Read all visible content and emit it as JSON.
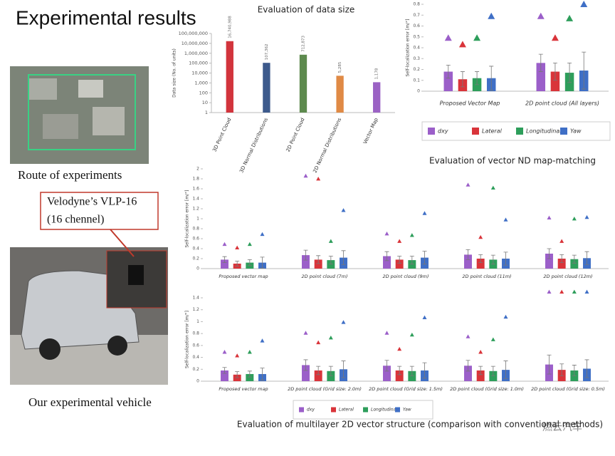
{
  "slide": {
    "title": "Experimental results",
    "route_caption": "Route of experiments",
    "sensor_callout": [
      "Velodyne’s VLP-16",
      "(16 chennel)"
    ],
    "vehicle_caption": "Our experimental vehicle",
    "watermark": "燃云汽车"
  },
  "chart_data": [
    {
      "type": "bar",
      "title": "Evaluation of data size",
      "y_label": "Data size (No. of units)",
      "log_scale": true,
      "categories": [
        "3D Point Cloud",
        "3D Normal Distributions",
        "2D Point Cloud",
        "2D Normal Distributions",
        "Vector Map"
      ],
      "values": [
        16740988,
        107362,
        712873,
        5285,
        1178
      ],
      "value_labels": [
        "16,740,988",
        "107,362",
        "712,873",
        "5,285",
        "1,178"
      ],
      "colors": [
        "#d2343c",
        "#3d5a8c",
        "#5d8a4e",
        "#e08a45",
        "#9b62c4"
      ],
      "ylim": [
        1,
        100000000
      ],
      "yticks": [
        1,
        10,
        100,
        {
          "value": 1000,
          "label": "1,000"
        },
        {
          "value": 10000,
          "label": "10,000"
        },
        {
          "value": 100000,
          "label": "100,000"
        },
        {
          "value": 1000000,
          "label": "1,000,000"
        },
        {
          "value": 10000000,
          "label": "10,000,000"
        },
        {
          "value": 100000000,
          "label": "100,000,000"
        }
      ]
    },
    {
      "type": "bar",
      "title": "Evaluation of vector ND map-matching",
      "title_position": "bottom",
      "y_label": "Self-localization error [m/°]",
      "legend": "bottom",
      "categories": [
        "Proposed Vector Map",
        "2D point cloud (All layers)"
      ],
      "ylim": [
        0,
        0.8
      ],
      "yticks": [
        0,
        0.1,
        0.2,
        0.3,
        0.4,
        0.5,
        0.6,
        0.7,
        0.8
      ],
      "series": [
        {
          "name": "dxy",
          "color": "#9b5fc9",
          "values": [
            0.18,
            0.26
          ],
          "errors": [
            0.06,
            0.08
          ],
          "max": [
            0.49,
            0.69
          ]
        },
        {
          "name": "Lateral",
          "color": "#d9343a",
          "values": [
            0.11,
            0.18
          ],
          "errors": [
            0.07,
            0.08
          ],
          "max": [
            0.43,
            0.49
          ]
        },
        {
          "name": "Longitudinal",
          "color": "#2e9e5b",
          "values": [
            0.12,
            0.17
          ],
          "errors": [
            0.06,
            0.09
          ],
          "max": [
            0.49,
            0.67
          ]
        },
        {
          "name": "Yaw",
          "color": "#3f6fc6",
          "values": [
            0.12,
            0.19
          ],
          "errors": [
            0.11,
            0.17
          ],
          "max": [
            0.69,
            0.8
          ]
        }
      ]
    },
    {
      "type": "bar",
      "y_label": "Self-localization error [m/°]",
      "categories": [
        "Proposed vector map",
        "2D point cloud (7m)",
        "2D point cloud (9m)",
        "2D point cloud (11m)",
        "2D point cloud (12m)"
      ],
      "ylim": [
        0,
        2
      ],
      "yticks": [
        0,
        0.2,
        0.4,
        0.6,
        0.8,
        1,
        1.2,
        1.4,
        1.6,
        1.8,
        2
      ],
      "series": [
        {
          "name": "dxy",
          "color": "#9b5fc9",
          "values": [
            0.18,
            0.27,
            0.25,
            0.28,
            0.3
          ],
          "errors": [
            0.06,
            0.1,
            0.09,
            0.1,
            0.1
          ],
          "max": [
            0.49,
            1.86,
            0.7,
            1.68,
            1.02
          ]
        },
        {
          "name": "Lateral",
          "color": "#d9343a",
          "values": [
            0.1,
            0.18,
            0.18,
            0.2,
            0.2
          ],
          "errors": [
            0.05,
            0.08,
            0.07,
            0.08,
            0.08
          ],
          "max": [
            0.42,
            1.8,
            0.55,
            0.63,
            0.55
          ]
        },
        {
          "name": "Longitudinal",
          "color": "#2e9e5b",
          "values": [
            0.12,
            0.17,
            0.17,
            0.18,
            0.19
          ],
          "errors": [
            0.06,
            0.08,
            0.08,
            0.09,
            0.08
          ],
          "max": [
            0.49,
            0.55,
            0.67,
            1.62,
            1.0
          ]
        },
        {
          "name": "Yaw",
          "color": "#3f6fc6",
          "values": [
            0.12,
            0.22,
            0.22,
            0.2,
            0.21
          ],
          "errors": [
            0.11,
            0.14,
            0.13,
            0.13,
            0.13
          ],
          "max": [
            0.69,
            1.17,
            1.11,
            0.98,
            1.03
          ]
        }
      ]
    },
    {
      "type": "bar",
      "title": "Evaluation of multilayer 2D vector structure (comparison with conventional methods)",
      "title_position": "bottom",
      "y_label": "Self-localization error [m/°]",
      "legend": "bottom",
      "categories": [
        "Proposed vector map",
        "2D point cloud (Grid size: 2.0m)",
        "2D point cloud (Grid size: 1.5m)",
        "2D point cloud (Grid size: 1.0m)",
        "2D point cloud (Grid size: 0.5m)"
      ],
      "ylim": [
        0,
        1.4
      ],
      "yticks": [
        0,
        0.2,
        0.4,
        0.6,
        0.8,
        1,
        1.2,
        1.4
      ],
      "series": [
        {
          "name": "dxy",
          "color": "#9b5fc9",
          "values": [
            0.18,
            0.27,
            0.26,
            0.26,
            0.28
          ],
          "errors": [
            0.05,
            0.09,
            0.09,
            0.09,
            0.16
          ],
          "max": [
            0.49,
            0.81,
            0.81,
            0.75,
            1.5
          ]
        },
        {
          "name": "Lateral",
          "color": "#d9343a",
          "values": [
            0.11,
            0.18,
            0.18,
            0.18,
            0.19
          ],
          "errors": [
            0.05,
            0.07,
            0.07,
            0.07,
            0.1
          ],
          "max": [
            0.43,
            0.65,
            0.54,
            0.49,
            1.5
          ]
        },
        {
          "name": "Longitudinal",
          "color": "#2e9e5b",
          "values": [
            0.12,
            0.17,
            0.17,
            0.17,
            0.18
          ],
          "errors": [
            0.05,
            0.08,
            0.08,
            0.08,
            0.09
          ],
          "max": [
            0.49,
            0.73,
            0.78,
            0.7,
            1.5
          ]
        },
        {
          "name": "Yaw",
          "color": "#3f6fc6",
          "values": [
            0.12,
            0.2,
            0.18,
            0.19,
            0.21
          ],
          "errors": [
            0.1,
            0.14,
            0.13,
            0.15,
            0.15
          ],
          "max": [
            0.68,
            0.99,
            1.07,
            1.08,
            1.5
          ]
        }
      ]
    }
  ]
}
